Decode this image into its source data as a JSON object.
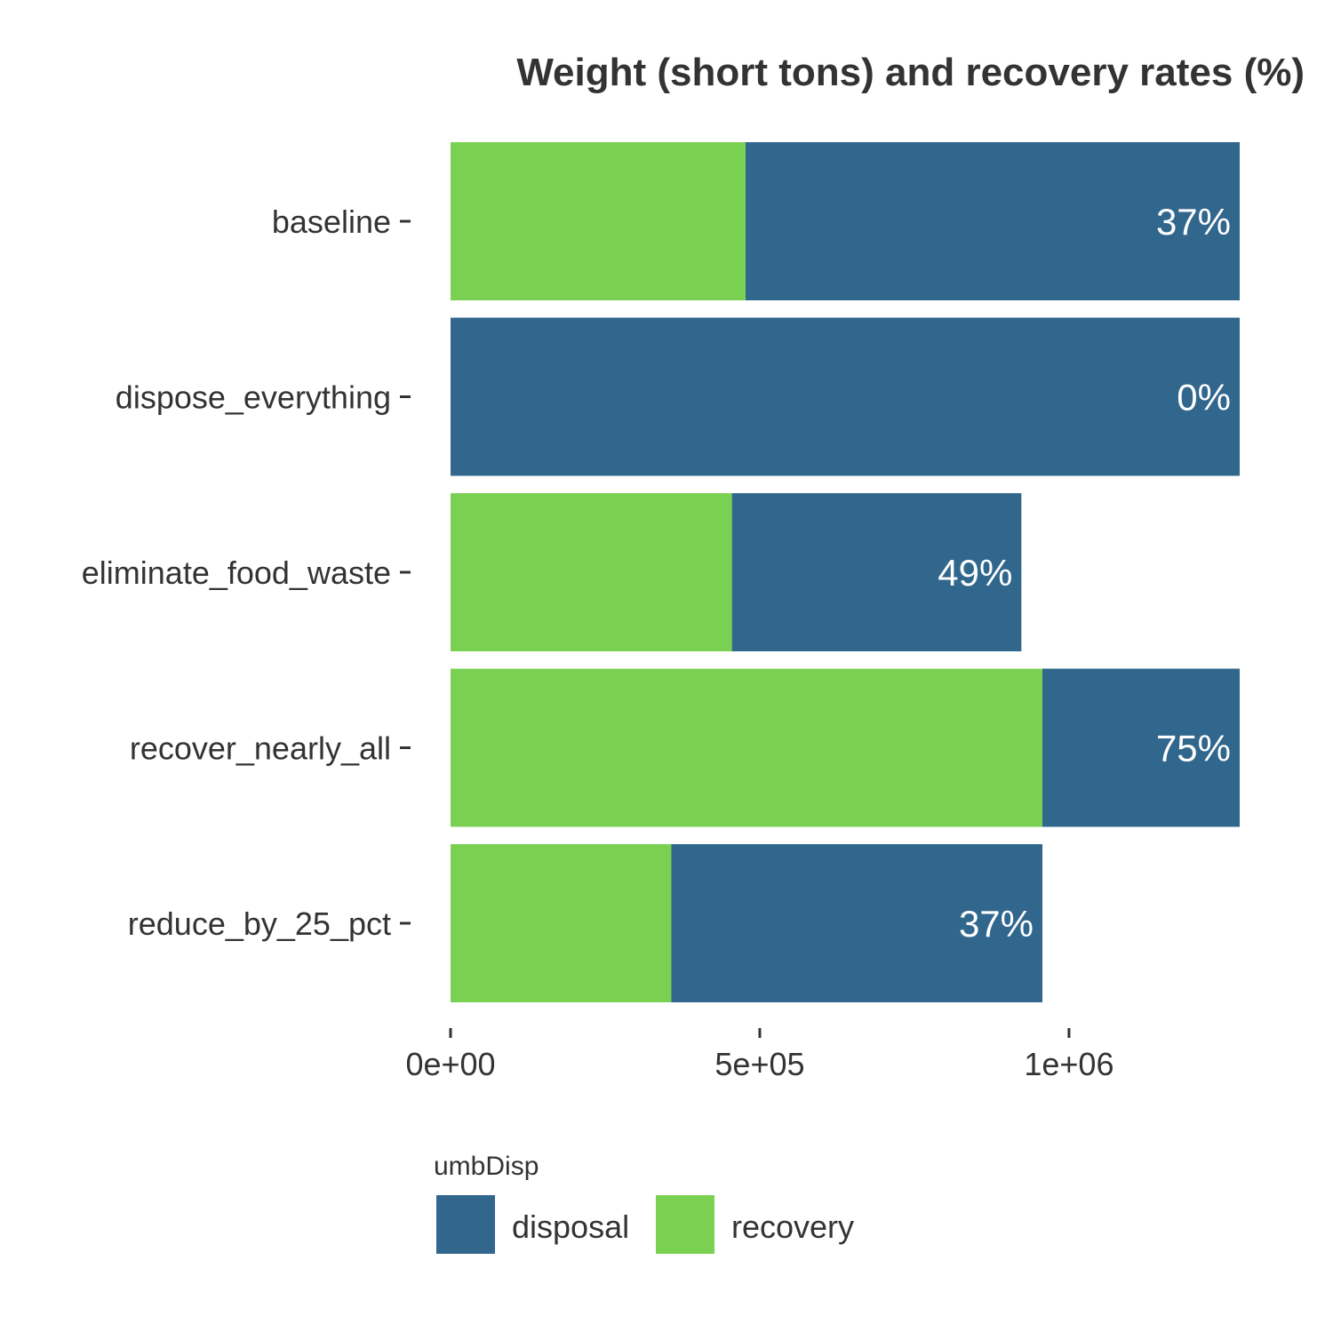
{
  "chart_data": {
    "type": "bar",
    "orientation": "horizontal",
    "stacked": true,
    "title": "Weight (short tons) and recovery rates (%)",
    "xlabel": "",
    "ylabel": "",
    "categories": [
      "baseline",
      "dispose_everything",
      "eliminate_food_waste",
      "recover_nearly_all",
      "reduce_by_25_pct"
    ],
    "series": [
      {
        "name": "recovery",
        "color": "#7ad151",
        "values": [
          477000,
          0,
          455000,
          957000,
          357000
        ]
      },
      {
        "name": "disposal",
        "color": "#31668d",
        "values": [
          799000,
          1276000,
          468000,
          319000,
          600000
        ]
      }
    ],
    "data_labels": [
      "37%",
      "0%",
      "49%",
      "75%",
      "37%"
    ],
    "x_ticks": [
      {
        "value": 0,
        "label": "0e+00"
      },
      {
        "value": 500000,
        "label": "5e+05"
      },
      {
        "value": 1000000,
        "label": "1e+06"
      }
    ],
    "xlim": [
      0,
      1276000
    ],
    "grid": false,
    "legend": {
      "title": "umbDisp",
      "position": "bottom",
      "entries": [
        {
          "label": "disposal",
          "color": "#31668d"
        },
        {
          "label": "recovery",
          "color": "#7ad151"
        }
      ]
    }
  }
}
